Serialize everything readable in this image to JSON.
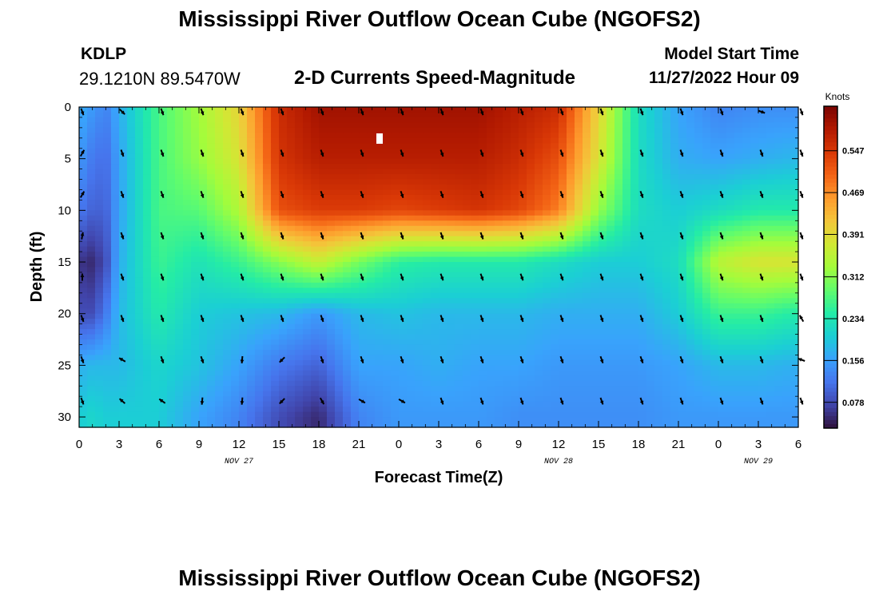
{
  "header": {
    "title": "Mississippi River Outflow Ocean Cube (NGOFS2)",
    "station_id": "KDLP",
    "station_coords": "29.1210N  89.5470W",
    "plot_title": "2-D Currents Speed-Magnitude",
    "start_label": "Model Start Time",
    "start_value": "11/27/2022 Hour 09"
  },
  "footer": {
    "title": "Mississippi River Outflow Ocean Cube (NGOFS2)"
  },
  "chart_data": {
    "type": "heatmap",
    "title": "2-D Currents Speed-Magnitude",
    "xlabel": "Forecast Time(Z)",
    "ylabel": "Depth (ft)",
    "x_tick_labels": [
      "0",
      "3",
      "6",
      "9",
      "12",
      "15",
      "18",
      "21",
      "0",
      "3",
      "6",
      "9",
      "12",
      "15",
      "18",
      "21",
      "0",
      "3",
      "6"
    ],
    "date_labels": [
      {
        "label": "NOV 27",
        "at_tick": 4
      },
      {
        "label": "NOV 28",
        "at_tick": 12
      },
      {
        "label": "NOV 29",
        "at_tick": 17
      }
    ],
    "x_range_hours": [
      0,
      54
    ],
    "ylim": [
      0,
      31
    ],
    "y_inverted": true,
    "y_ticks": [
      0,
      5,
      10,
      15,
      20,
      25,
      30
    ],
    "colorbar": {
      "label": "Knots",
      "ticks": [
        0.078,
        0.156,
        0.234,
        0.312,
        0.391,
        0.469,
        0.547
      ],
      "range": [
        0.03,
        0.63
      ],
      "colors": [
        "#30123b",
        "#4145ab",
        "#4675ed",
        "#39a2fc",
        "#1bcfd4",
        "#24eca6",
        "#61fc6c",
        "#a4fc3b",
        "#d1e834",
        "#f3c63a",
        "#fe9b2d",
        "#f36315",
        "#d93806",
        "#b11901",
        "#7a0402"
      ]
    },
    "speed_keypoints": {
      "description": "current speed (knots) by hour and depth, read from the color scale",
      "hours": [
        0,
        1,
        2,
        3,
        6,
        9,
        12,
        15,
        18,
        21,
        24,
        27,
        30,
        33,
        36,
        39,
        42,
        45,
        48,
        51,
        54
      ],
      "depths": [
        0,
        5,
        10,
        15,
        20,
        25,
        30
      ],
      "values": [
        [
          0.17,
          0.15,
          0.13,
          0.17,
          0.27,
          0.33,
          0.4,
          0.56,
          0.6,
          0.6,
          0.6,
          0.6,
          0.6,
          0.58,
          0.56,
          0.4,
          0.22,
          0.16,
          0.13,
          0.14,
          0.14
        ],
        [
          0.15,
          0.12,
          0.11,
          0.16,
          0.27,
          0.32,
          0.38,
          0.55,
          0.58,
          0.58,
          0.58,
          0.58,
          0.58,
          0.56,
          0.52,
          0.38,
          0.22,
          0.17,
          0.16,
          0.17,
          0.18
        ],
        [
          0.12,
          0.1,
          0.1,
          0.16,
          0.27,
          0.28,
          0.34,
          0.52,
          0.54,
          0.54,
          0.53,
          0.54,
          0.55,
          0.53,
          0.48,
          0.32,
          0.22,
          0.2,
          0.22,
          0.24,
          0.24
        ],
        [
          0.06,
          0.05,
          0.08,
          0.17,
          0.26,
          0.23,
          0.26,
          0.31,
          0.36,
          0.3,
          0.25,
          0.24,
          0.24,
          0.24,
          0.22,
          0.2,
          0.2,
          0.22,
          0.35,
          0.38,
          0.38
        ],
        [
          0.08,
          0.08,
          0.12,
          0.18,
          0.24,
          0.2,
          0.19,
          0.18,
          0.15,
          0.18,
          0.19,
          0.18,
          0.18,
          0.18,
          0.17,
          0.17,
          0.17,
          0.2,
          0.26,
          0.26,
          0.24
        ],
        [
          0.17,
          0.18,
          0.18,
          0.18,
          0.21,
          0.19,
          0.16,
          0.12,
          0.1,
          0.16,
          0.16,
          0.17,
          0.16,
          0.16,
          0.15,
          0.15,
          0.15,
          0.16,
          0.18,
          0.18,
          0.17
        ],
        [
          0.2,
          0.21,
          0.2,
          0.2,
          0.2,
          0.16,
          0.13,
          0.08,
          0.05,
          0.13,
          0.15,
          0.15,
          0.15,
          0.14,
          0.14,
          0.14,
          0.14,
          0.15,
          0.15,
          0.15,
          0.15
        ]
      ]
    },
    "arrows": {
      "description": "current direction vectors at sampled hours/depths (screen direction, degrees clockwise from east)",
      "hours": [
        0,
        3,
        6,
        9,
        12,
        15,
        18,
        21,
        24,
        27,
        30,
        33,
        36,
        39,
        42,
        45,
        48,
        51,
        54
      ],
      "depths": [
        0,
        4,
        8,
        12,
        16,
        20,
        24,
        28
      ],
      "default_angle": 70,
      "angle_overrides": [
        {
          "hour": 3,
          "depth": 0,
          "angle": 45
        },
        {
          "hour": 0,
          "depth": 4,
          "angle": -60
        },
        {
          "hour": 0,
          "depth": 8,
          "angle": -60
        },
        {
          "hour": 0,
          "depth": 12,
          "angle": -80
        },
        {
          "hour": 0,
          "depth": 16,
          "angle": -90
        },
        {
          "hour": 3,
          "depth": 24,
          "angle": 210
        },
        {
          "hour": 3,
          "depth": 28,
          "angle": 220
        },
        {
          "hour": 6,
          "depth": 28,
          "angle": 215
        },
        {
          "hour": 15,
          "depth": 24,
          "angle": 135
        },
        {
          "hour": 15,
          "depth": 28,
          "angle": 135
        },
        {
          "hour": 12,
          "depth": 24,
          "angle": 95
        },
        {
          "hour": 12,
          "depth": 28,
          "angle": 95
        },
        {
          "hour": 9,
          "depth": 28,
          "angle": 95
        },
        {
          "hour": 18,
          "depth": 28,
          "angle": 60
        },
        {
          "hour": 21,
          "depth": 28,
          "angle": 30
        },
        {
          "hour": 24,
          "depth": 28,
          "angle": 30
        },
        {
          "hour": 51,
          "depth": 0,
          "angle": 20
        },
        {
          "hour": 54,
          "depth": 20,
          "angle": 240
        },
        {
          "hour": 54,
          "depth": 24,
          "angle": 200
        }
      ]
    }
  }
}
